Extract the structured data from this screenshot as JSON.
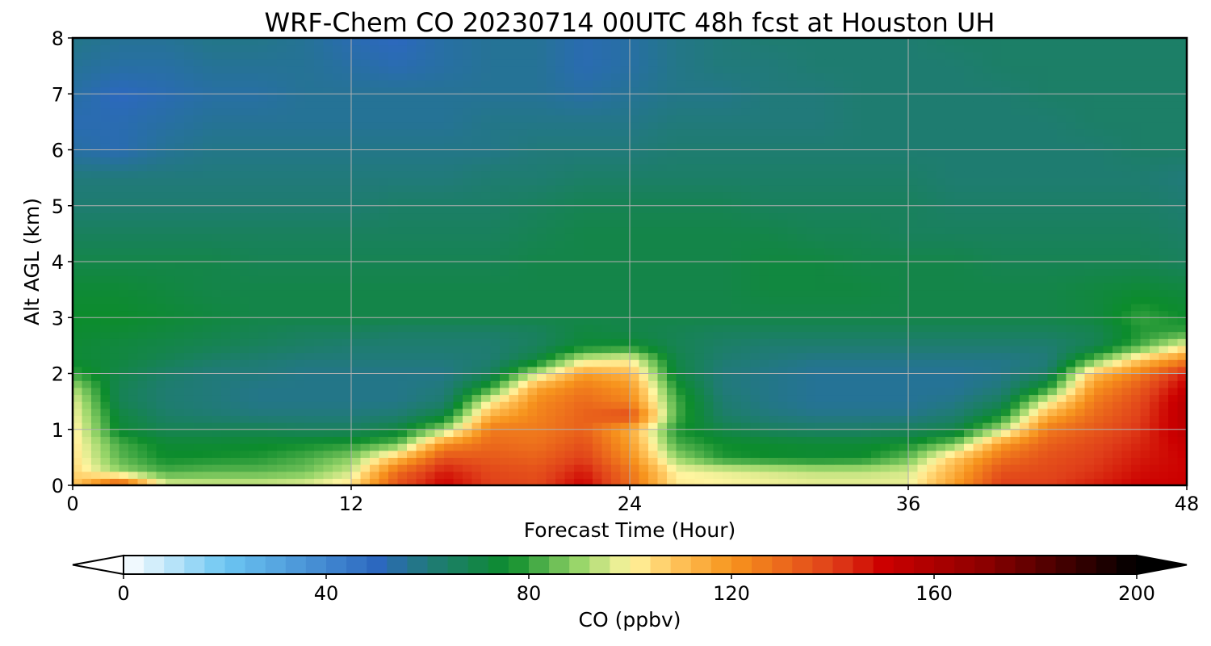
{
  "chart_data": {
    "type": "heatmap",
    "title": "WRF-Chem CO  20230714 00UTC 48h fcst at Houston UH",
    "xlabel": "Forecast Time (Hour)",
    "ylabel": "Alt AGL (km)",
    "xlim": [
      0,
      48
    ],
    "ylim": [
      0,
      8
    ],
    "xticks": [
      0,
      12,
      24,
      36,
      48
    ],
    "yticks": [
      0,
      1,
      2,
      3,
      4,
      5,
      6,
      7,
      8
    ],
    "grid": true,
    "x": [
      0,
      2,
      4,
      6,
      8,
      10,
      12,
      14,
      16,
      18,
      20,
      22,
      24,
      26,
      28,
      30,
      32,
      34,
      36,
      38,
      40,
      42,
      44,
      46,
      48
    ],
    "y": [
      0,
      0.25,
      0.5,
      0.75,
      1,
      1.25,
      1.5,
      1.75,
      2,
      2.25,
      2.5,
      2.75,
      3,
      3.5,
      4,
      4.5,
      5,
      5.5,
      6,
      6.5,
      7,
      7.5,
      8
    ],
    "z": [
      [
        108,
        140,
        98,
        96,
        96,
        98,
        104,
        136,
        150,
        140,
        138,
        150,
        130,
        102,
        100,
        99,
        98,
        98,
        98,
        118,
        140,
        140,
        145,
        150,
        150
      ],
      [
        106,
        90,
        82,
        84,
        84,
        86,
        95,
        130,
        146,
        138,
        136,
        146,
        128,
        100,
        98,
        96,
        94,
        94,
        96,
        114,
        136,
        138,
        142,
        148,
        150
      ],
      [
        104,
        84,
        76,
        77,
        78,
        82,
        88,
        110,
        136,
        134,
        132,
        140,
        122,
        90,
        78,
        76,
        75,
        76,
        85,
        108,
        128,
        136,
        140,
        146,
        150
      ],
      [
        103,
        82,
        74,
        74,
        75,
        76,
        78,
        84,
        120,
        130,
        128,
        136,
        118,
        82,
        76,
        75,
        74,
        74,
        76,
        86,
        118,
        132,
        138,
        144,
        152
      ],
      [
        102,
        74,
        68,
        68,
        68,
        66,
        66,
        72,
        90,
        126,
        126,
        132,
        115,
        78,
        70,
        66,
        64,
        64,
        66,
        70,
        92,
        126,
        134,
        142,
        155
      ],
      [
        100,
        72,
        64,
        62,
        60,
        60,
        60,
        62,
        72,
        114,
        124,
        132,
        138,
        82,
        64,
        60,
        58,
        58,
        58,
        62,
        76,
        114,
        130,
        140,
        156
      ],
      [
        98,
        68,
        62,
        60,
        58,
        58,
        58,
        58,
        62,
        100,
        122,
        130,
        124,
        82,
        62,
        58,
        56,
        56,
        56,
        58,
        66,
        98,
        126,
        138,
        156
      ],
      [
        92,
        68,
        62,
        60,
        58,
        58,
        58,
        58,
        60,
        80,
        116,
        126,
        120,
        78,
        60,
        58,
        56,
        56,
        56,
        56,
        60,
        78,
        120,
        134,
        152
      ],
      [
        80,
        70,
        64,
        60,
        60,
        58,
        58,
        58,
        58,
        66,
        94,
        118,
        112,
        72,
        60,
        58,
        56,
        56,
        56,
        56,
        58,
        64,
        110,
        126,
        146
      ],
      [
        74,
        72,
        68,
        64,
        62,
        60,
        60,
        60,
        60,
        62,
        72,
        96,
        100,
        70,
        62,
        60,
        58,
        58,
        58,
        58,
        58,
        60,
        84,
        108,
        124
      ],
      [
        74,
        72,
        70,
        68,
        66,
        64,
        62,
        62,
        62,
        62,
        66,
        74,
        76,
        68,
        64,
        62,
        62,
        62,
        62,
        62,
        62,
        62,
        68,
        82,
        100
      ],
      [
        75,
        74,
        72,
        70,
        68,
        66,
        66,
        64,
        64,
        64,
        66,
        72,
        70,
        68,
        66,
        66,
        66,
        66,
        66,
        66,
        66,
        66,
        68,
        78,
        80
      ],
      [
        76,
        76,
        74,
        72,
        70,
        70,
        70,
        70,
        70,
        70,
        70,
        70,
        70,
        70,
        70,
        70,
        70,
        70,
        70,
        70,
        70,
        70,
        72,
        80,
        76
      ],
      [
        74,
        74,
        72,
        70,
        70,
        70,
        70,
        70,
        70,
        70,
        70,
        70,
        70,
        70,
        70,
        72,
        72,
        72,
        70,
        70,
        70,
        70,
        72,
        74,
        72
      ],
      [
        70,
        70,
        70,
        70,
        68,
        68,
        68,
        68,
        68,
        68,
        70,
        70,
        70,
        70,
        70,
        72,
        72,
        70,
        70,
        70,
        68,
        68,
        68,
        68,
        66
      ],
      [
        66,
        66,
        66,
        66,
        66,
        66,
        66,
        66,
        66,
        66,
        68,
        70,
        70,
        70,
        70,
        70,
        68,
        68,
        66,
        66,
        66,
        66,
        66,
        66,
        64
      ],
      [
        62,
        62,
        62,
        62,
        62,
        62,
        62,
        64,
        64,
        64,
        66,
        68,
        68,
        68,
        68,
        66,
        66,
        66,
        66,
        64,
        64,
        64,
        64,
        64,
        62
      ],
      [
        60,
        60,
        60,
        60,
        60,
        60,
        60,
        60,
        60,
        62,
        62,
        64,
        64,
        64,
        64,
        64,
        64,
        64,
        64,
        62,
        62,
        62,
        62,
        62,
        60
      ],
      [
        54,
        52,
        56,
        58,
        58,
        58,
        58,
        58,
        58,
        58,
        60,
        60,
        60,
        62,
        62,
        62,
        62,
        62,
        62,
        62,
        62,
        62,
        62,
        64,
        64
      ],
      [
        52,
        52,
        54,
        56,
        56,
        56,
        56,
        56,
        56,
        58,
        58,
        58,
        58,
        60,
        60,
        60,
        60,
        62,
        62,
        62,
        62,
        62,
        64,
        64,
        64
      ],
      [
        54,
        50,
        52,
        54,
        54,
        56,
        56,
        56,
        56,
        56,
        56,
        54,
        56,
        58,
        58,
        60,
        60,
        62,
        62,
        62,
        62,
        64,
        64,
        64,
        64
      ],
      [
        56,
        54,
        54,
        56,
        56,
        56,
        54,
        52,
        54,
        56,
        56,
        52,
        54,
        58,
        60,
        60,
        62,
        62,
        62,
        62,
        64,
        64,
        64,
        64,
        64
      ],
      [
        58,
        56,
        56,
        58,
        58,
        56,
        52,
        50,
        54,
        56,
        56,
        52,
        54,
        58,
        60,
        62,
        62,
        62,
        62,
        64,
        64,
        64,
        64,
        64,
        64
      ]
    ],
    "colorbar": {
      "label": "CO  (ppbv)",
      "range": [
        0,
        200
      ],
      "ticks": [
        0,
        40,
        80,
        120,
        160,
        200
      ],
      "extend": "both",
      "colors": [
        {
          "v": 0,
          "c": "#ffffff"
        },
        {
          "v": 20,
          "c": "#6cc6f2"
        },
        {
          "v": 50,
          "c": "#2c68bf"
        },
        {
          "v": 60,
          "c": "#217a7a"
        },
        {
          "v": 76,
          "c": "#0c8c2c"
        },
        {
          "v": 90,
          "c": "#99d66a"
        },
        {
          "v": 100,
          "c": "#fff5a0"
        },
        {
          "v": 108,
          "c": "#ffc860"
        },
        {
          "v": 120,
          "c": "#f7941d"
        },
        {
          "v": 140,
          "c": "#e0401a"
        },
        {
          "v": 150,
          "c": "#cc0000"
        },
        {
          "v": 170,
          "c": "#8c0000"
        },
        {
          "v": 200,
          "c": "#000000"
        }
      ]
    }
  }
}
